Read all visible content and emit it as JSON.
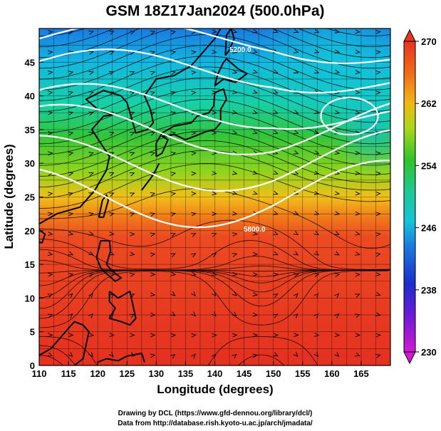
{
  "chart_data": {
    "type": "heatmap",
    "title": "GSM 18Z17Jan2024 (500.0hPa)",
    "xlabel": "Longitude (degrees)",
    "ylabel": "Latitude (degrees)",
    "xlim": [
      110,
      170
    ],
    "ylim": [
      0,
      50
    ],
    "x_ticks": [
      "110",
      "115",
      "120",
      "125",
      "130",
      "135",
      "140",
      "145",
      "150",
      "155",
      "160",
      "165"
    ],
    "y_ticks": [
      "0",
      "5",
      "10",
      "15",
      "20",
      "25",
      "30",
      "35",
      "40",
      "45"
    ],
    "grid": true,
    "colorbar": {
      "position": "right",
      "min": 230,
      "max": 270,
      "ticks": [
        "230",
        "238",
        "246",
        "254",
        "262",
        "270"
      ],
      "colors": [
        "#d21ad2",
        "#1a2ecc",
        "#13c4d8",
        "#30c42a",
        "#f2b716",
        "#e83420"
      ]
    },
    "contour_labels": [
      "5200.0",
      "5800.0"
    ],
    "field_notes": "temperature field with streamlines and geopotential height contours"
  },
  "credits": {
    "line1": "Drawing by DCL (https://www.gfd-dennou.org/library/dcl/)",
    "line2": "Data from http://database.rish.kyoto-u.ac.jp/arch/jmadata/"
  }
}
